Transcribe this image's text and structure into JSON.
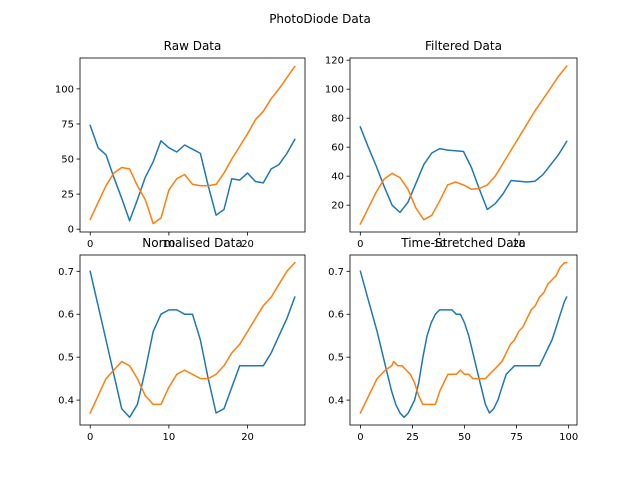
{
  "figure": {
    "suptitle": "PhotoDiode Data"
  },
  "colors": {
    "series1": "#1f77b4",
    "series2": "#ff7f0e"
  },
  "chart_data": [
    {
      "type": "line",
      "title": "Raw Data",
      "xlim": [
        -1.3,
        27.3
      ],
      "ylim": [
        -2,
        122
      ],
      "xticks": [
        0,
        10,
        20
      ],
      "yticks": [
        0,
        25,
        50,
        75,
        100
      ],
      "series": [
        {
          "x": [
            0,
            1,
            2,
            3,
            4,
            5,
            6,
            7,
            8,
            9,
            10,
            11,
            12,
            13,
            14,
            15,
            16,
            17,
            18,
            19,
            20,
            21,
            22,
            23,
            24,
            25,
            26
          ],
          "values": [
            74,
            58,
            53,
            37,
            22,
            6,
            21,
            37,
            48,
            63,
            58,
            55,
            60,
            57,
            54,
            31,
            10,
            14,
            36,
            35,
            40,
            34,
            33,
            43,
            46,
            54,
            64
          ]
        },
        {
          "x": [
            0,
            1,
            2,
            3,
            4,
            5,
            6,
            7,
            8,
            9,
            10,
            11,
            12,
            13,
            14,
            15,
            16,
            17,
            18,
            19,
            20,
            21,
            22,
            23,
            24,
            25,
            26
          ],
          "values": [
            7,
            19,
            31,
            40,
            44,
            43,
            31,
            21,
            4,
            8,
            28,
            36,
            39,
            32,
            31,
            31,
            32,
            40,
            50,
            59,
            68,
            78,
            84,
            93,
            100,
            108,
            116
          ]
        }
      ]
    },
    {
      "type": "line",
      "title": "Filtered Data",
      "xlim": [
        -1.3,
        27.3
      ],
      "ylim": [
        1.5,
        121.5
      ],
      "xticks": [
        0,
        10,
        20
      ],
      "yticks": [
        20,
        40,
        60,
        80,
        100,
        120
      ],
      "series": [
        {
          "x": [
            0,
            1,
            2,
            3,
            4,
            5,
            6,
            7,
            8,
            9,
            10,
            11,
            12,
            13,
            14,
            15,
            16,
            17,
            18,
            19,
            20,
            21,
            22,
            23,
            24,
            25,
            26
          ],
          "values": [
            74,
            60,
            47,
            33,
            20,
            15,
            22,
            35,
            48,
            56,
            59,
            58,
            57.5,
            57,
            46,
            31,
            17,
            21,
            28,
            37,
            36.5,
            36,
            36.5,
            41,
            48,
            55,
            64
          ]
        },
        {
          "x": [
            0,
            1,
            2,
            3,
            4,
            5,
            6,
            7,
            8,
            9,
            10,
            11,
            12,
            13,
            14,
            15,
            16,
            17,
            18,
            19,
            20,
            21,
            22,
            23,
            24,
            25,
            26
          ],
          "values": [
            7,
            18,
            29,
            38,
            42,
            39,
            31,
            18,
            10,
            13,
            23,
            34,
            36,
            34,
            31,
            31.5,
            34,
            40,
            49,
            58,
            67,
            76,
            85,
            93,
            101,
            109,
            116
          ]
        }
      ]
    },
    {
      "type": "line",
      "title": "Normalised Data",
      "xlim": [
        -1.3,
        27.3
      ],
      "ylim": [
        0.342,
        0.738
      ],
      "xticks": [
        0,
        10,
        20
      ],
      "yticks": [
        0.4,
        0.5,
        0.6,
        0.7
      ],
      "series": [
        {
          "x": [
            0,
            1,
            2,
            3,
            4,
            5,
            6,
            7,
            8,
            9,
            10,
            11,
            12,
            13,
            14,
            15,
            16,
            17,
            18,
            19,
            20,
            21,
            22,
            23,
            24,
            25,
            26
          ],
          "values": [
            0.7,
            0.62,
            0.54,
            0.46,
            0.38,
            0.36,
            0.39,
            0.47,
            0.56,
            0.6,
            0.61,
            0.61,
            0.6,
            0.6,
            0.54,
            0.45,
            0.37,
            0.38,
            0.43,
            0.48,
            0.48,
            0.48,
            0.48,
            0.51,
            0.55,
            0.59,
            0.64
          ]
        },
        {
          "x": [
            0,
            1,
            2,
            3,
            4,
            5,
            6,
            7,
            8,
            9,
            10,
            11,
            12,
            13,
            14,
            15,
            16,
            17,
            18,
            19,
            20,
            21,
            22,
            23,
            24,
            25,
            26
          ],
          "values": [
            0.37,
            0.41,
            0.45,
            0.47,
            0.49,
            0.48,
            0.45,
            0.41,
            0.39,
            0.39,
            0.43,
            0.46,
            0.47,
            0.46,
            0.45,
            0.45,
            0.46,
            0.48,
            0.51,
            0.53,
            0.56,
            0.59,
            0.62,
            0.64,
            0.67,
            0.7,
            0.72
          ]
        }
      ]
    },
    {
      "type": "line",
      "title": "Time-Stretched Data",
      "xlim": [
        -5,
        104
      ],
      "ylim": [
        0.342,
        0.738
      ],
      "xticks": [
        0,
        25,
        50,
        75,
        100
      ],
      "yticks": [
        0.4,
        0.5,
        0.6,
        0.7
      ],
      "series": [
        {
          "x": [
            0,
            4,
            8,
            12,
            15,
            17,
            19,
            21,
            23,
            26,
            28,
            30,
            32,
            34,
            36,
            38,
            40,
            42,
            44,
            46,
            48,
            50,
            52,
            54,
            56,
            58,
            60,
            62,
            64,
            66,
            68,
            70,
            74,
            78,
            82,
            86,
            88,
            90,
            92,
            94,
            96,
            98,
            99
          ],
          "values": [
            0.7,
            0.63,
            0.56,
            0.48,
            0.42,
            0.39,
            0.37,
            0.36,
            0.37,
            0.4,
            0.44,
            0.5,
            0.55,
            0.58,
            0.6,
            0.61,
            0.61,
            0.61,
            0.61,
            0.6,
            0.6,
            0.58,
            0.55,
            0.51,
            0.47,
            0.43,
            0.39,
            0.37,
            0.38,
            0.4,
            0.43,
            0.46,
            0.48,
            0.48,
            0.48,
            0.48,
            0.5,
            0.52,
            0.54,
            0.57,
            0.6,
            0.63,
            0.64
          ]
        },
        {
          "x": [
            0,
            4,
            8,
            12,
            15,
            16,
            18,
            20,
            22,
            24,
            26,
            28,
            30,
            32,
            36,
            38,
            40,
            42,
            44,
            46,
            48,
            50,
            52,
            54,
            56,
            58,
            60,
            62,
            64,
            66,
            68,
            70,
            72,
            74,
            76,
            78,
            80,
            82,
            84,
            86,
            88,
            90,
            92,
            94,
            96,
            98,
            99
          ],
          "values": [
            0.37,
            0.41,
            0.45,
            0.47,
            0.48,
            0.49,
            0.48,
            0.48,
            0.47,
            0.46,
            0.44,
            0.41,
            0.39,
            0.39,
            0.39,
            0.42,
            0.44,
            0.46,
            0.46,
            0.46,
            0.47,
            0.46,
            0.46,
            0.45,
            0.45,
            0.45,
            0.45,
            0.46,
            0.47,
            0.48,
            0.49,
            0.51,
            0.53,
            0.54,
            0.56,
            0.57,
            0.59,
            0.61,
            0.62,
            0.64,
            0.65,
            0.67,
            0.68,
            0.69,
            0.71,
            0.72,
            0.72
          ]
        }
      ]
    }
  ]
}
